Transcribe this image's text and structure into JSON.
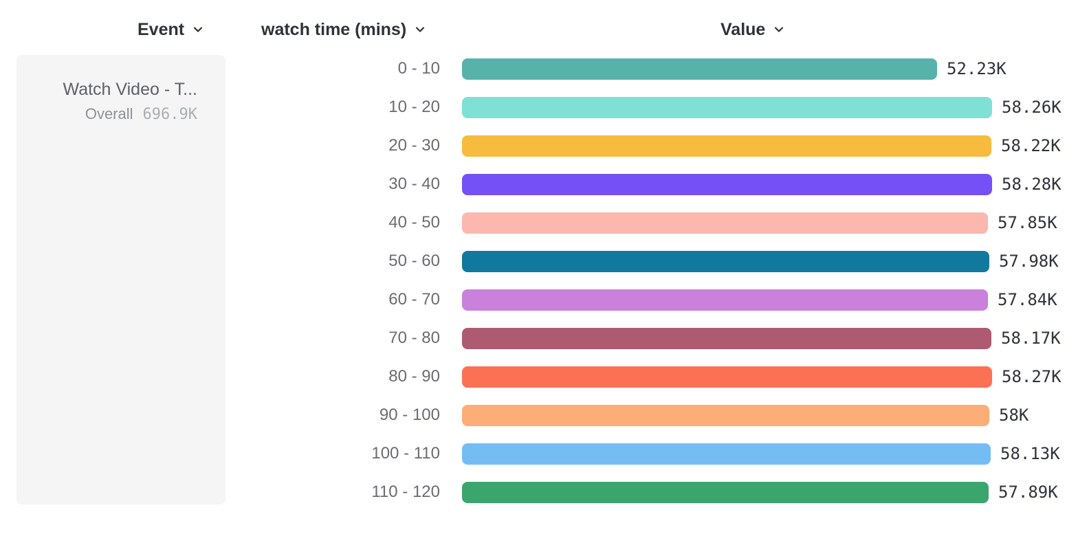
{
  "header": {
    "columns": [
      {
        "id": "event",
        "label": "Event",
        "icon": "chevron-down-icon"
      },
      {
        "id": "breakdown",
        "label": "watch time (mins)",
        "icon": "chevron-down-icon"
      },
      {
        "id": "value",
        "label": "Value",
        "icon": "chevron-down-icon"
      }
    ]
  },
  "event_card": {
    "title": "Watch Video - T...",
    "overall_label": "Overall",
    "overall_value": "696.9K"
  },
  "chart_data": {
    "type": "bar",
    "orientation": "horizontal",
    "title": "",
    "xlabel": "Value",
    "ylabel": "watch time (mins)",
    "unit": "K",
    "xlim": [
      0,
      58.28
    ],
    "grid": false,
    "legend": "none",
    "categories": [
      "0 - 10",
      "10 - 20",
      "20 - 30",
      "30 - 40",
      "40 - 50",
      "50 - 60",
      "60 - 70",
      "70 - 80",
      "80 - 90",
      "90 - 100",
      "100 - 110",
      "110 - 120"
    ],
    "values": [
      52.23,
      58.26,
      58.22,
      58.28,
      57.85,
      57.98,
      57.84,
      58.17,
      58.27,
      58.0,
      58.13,
      57.89
    ],
    "value_labels": [
      "52.23K",
      "58.26K",
      "58.22K",
      "58.28K",
      "57.85K",
      "57.98K",
      "57.84K",
      "58.17K",
      "58.27K",
      "58K",
      "58.13K",
      "57.89K"
    ],
    "colors": [
      "#57b2ab",
      "#7fe1d4",
      "#f7bb3d",
      "#7450f6",
      "#fcb8ae",
      "#12799e",
      "#c981dc",
      "#ae5a70",
      "#fc7154",
      "#fcae76",
      "#73bdf4",
      "#3ba56e"
    ]
  }
}
